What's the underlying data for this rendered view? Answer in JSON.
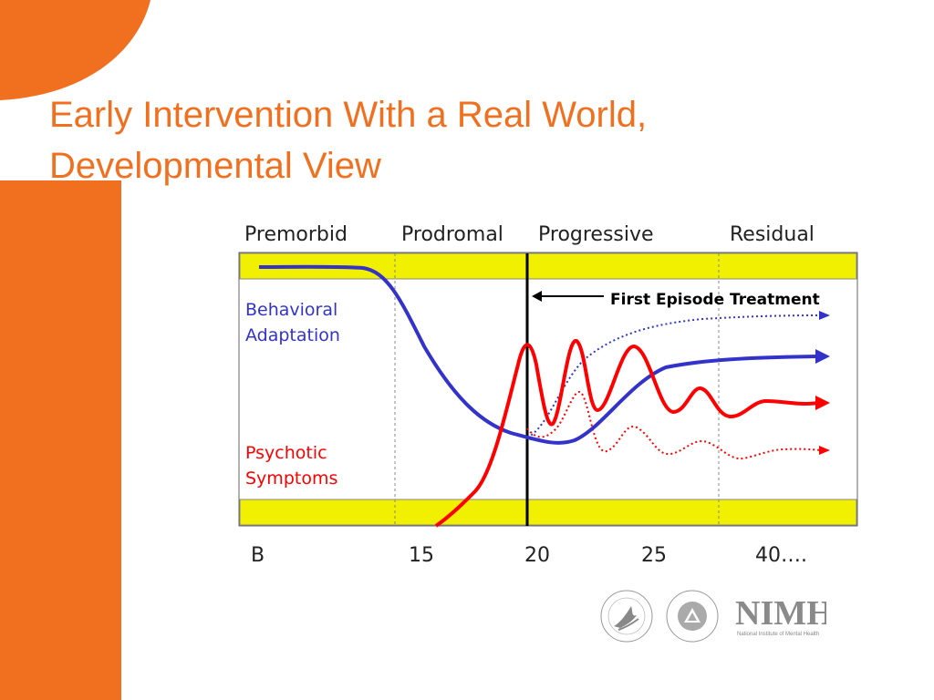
{
  "slide": {
    "title_line1": "Early Intervention With a Real World,",
    "title_line2": "Developmental View",
    "accent_color": "#f07020"
  },
  "diagram": {
    "phases": [
      "Premorbid",
      "Prodromal",
      "Progressive",
      "Residual"
    ],
    "x_ticks": [
      "B",
      "15",
      "20",
      "25",
      "40…."
    ],
    "curve_labels": {
      "behavioral_line1": "Behavioral",
      "behavioral_line2": "Adaptation",
      "psychotic_line1": "Psychotic",
      "psychotic_line2": "Symptoms"
    },
    "annotation": "First Episode Treatment",
    "colors": {
      "band": "#f0f000",
      "behavioral": "#3333cc",
      "psychotic": "#ff0000",
      "phase_text": "#222222"
    }
  },
  "logos": {
    "hhs": "hhs-seal-icon",
    "nih": "nih-seal-icon",
    "nimh_mark": "NIMH",
    "nimh_text": "National Institute of Mental Health"
  }
}
